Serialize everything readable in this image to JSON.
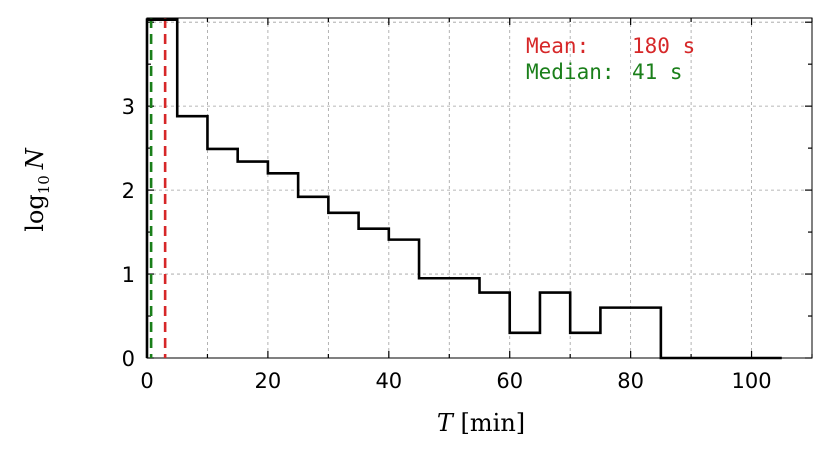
{
  "chart_data": {
    "type": "histogram-step",
    "xlabel": {
      "var": "T",
      "unit": "[min]"
    },
    "ylabel": {
      "func": "log",
      "sub": "10",
      "var": "N"
    },
    "xlim": [
      0,
      110
    ],
    "ylim": [
      0,
      4.05
    ],
    "xticks": [
      0,
      20,
      40,
      60,
      80,
      100
    ],
    "yticks": [
      0,
      1,
      2,
      3
    ],
    "xtick_labels": [
      "0",
      "20",
      "40",
      "60",
      "80",
      "100"
    ],
    "ytick_labels": [
      "0",
      "1",
      "2",
      "3"
    ],
    "grid": true,
    "bin_width": 5,
    "bin_edges": [
      0,
      5,
      10,
      15,
      20,
      25,
      30,
      35,
      40,
      45,
      50,
      55,
      60,
      65,
      70,
      75,
      80,
      85,
      90,
      95,
      100,
      105
    ],
    "values": [
      4.03,
      2.88,
      2.49,
      2.34,
      2.2,
      1.92,
      1.73,
      1.54,
      1.41,
      0.95,
      0.95,
      0.78,
      0.3,
      0.78,
      0.3,
      0.6,
      0.6,
      0,
      0,
      0,
      0
    ],
    "vlines": [
      {
        "name": "mean",
        "x": 3.0,
        "color": "#d62728",
        "style": "dashed"
      },
      {
        "name": "median",
        "x": 0.68,
        "color": "#1a7f1a",
        "style": "dashed"
      }
    ],
    "annotations": [
      {
        "label": "Mean:",
        "value": "180 s",
        "color": "#d62728"
      },
      {
        "label": "Median:",
        "value": "41 s",
        "color": "#1a7f1a"
      }
    ]
  }
}
